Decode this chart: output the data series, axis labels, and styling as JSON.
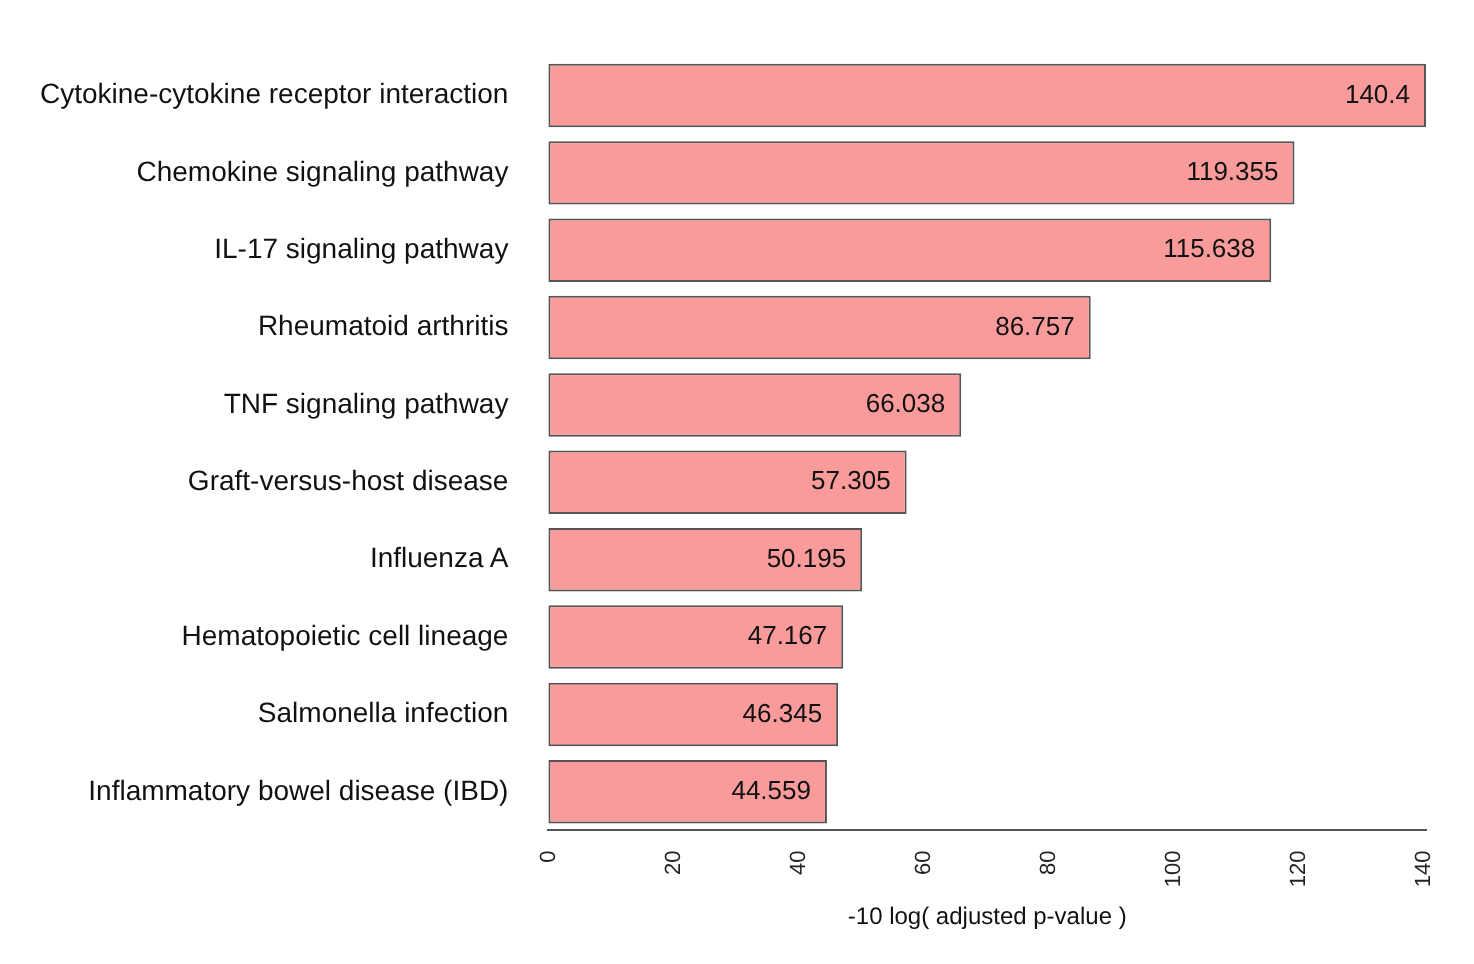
{
  "chart_data": {
    "type": "bar",
    "orientation": "horizontal",
    "xlabel": "-10 log( adjusted p-value )",
    "categories": [
      "Cytokine-cytokine receptor interaction",
      "Chemokine signaling pathway",
      "IL-17 signaling pathway",
      "Rheumatoid arthritis",
      "TNF signaling pathway",
      "Graft-versus-host disease",
      "Influenza A",
      "Hematopoietic cell lineage",
      "Salmonella infection",
      "Inflammatory bowel disease (IBD)"
    ],
    "values": [
      140.4,
      119.355,
      115.638,
      86.757,
      66.038,
      57.305,
      50.195,
      47.167,
      46.345,
      44.559
    ],
    "color": "#fa9b9b",
    "data_labels": true,
    "grid": false,
    "legend": false,
    "xlim": [
      0,
      140.4
    ],
    "xticks": [
      0,
      20,
      40,
      60,
      80,
      100,
      120,
      140
    ]
  }
}
